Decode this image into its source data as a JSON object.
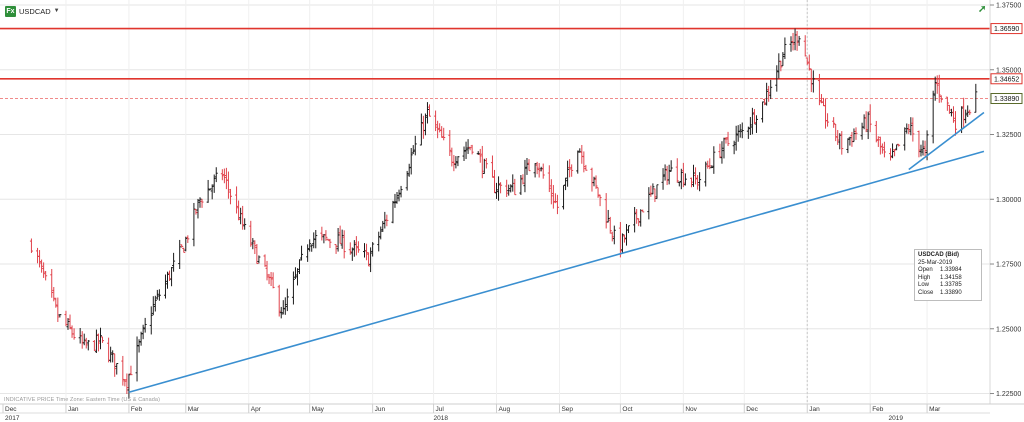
{
  "toolbar": {
    "symbol": "USDCAD",
    "fx_label": "Fx"
  },
  "watermark": {
    "indicative": "INDICATIVE PRICE",
    "timezone": "Time Zone: Eastern Time (US & Canada)"
  },
  "tooltip": {
    "title": "USDCAD (Bid)",
    "date": "25-Mar-2019",
    "open_label": "Open",
    "open": "1.33984",
    "high_label": "High",
    "high": "1.34158",
    "low_label": "Low",
    "low": "1.33785",
    "close_label": "Close",
    "close": "1.33890"
  },
  "colors": {
    "up_bar": "#1a1a1a",
    "down_bar": "#e0424b",
    "trendline": "#3a8fd0",
    "resistance": "#e0352d",
    "grid": "#e6e6e6"
  },
  "chart_data": {
    "type": "ohlc",
    "symbol": "USDCAD",
    "ylim": [
      1.2225,
      1.375
    ],
    "y_ticks": [
      "1.22500",
      "1.25000",
      "1.27500",
      "1.30000",
      "1.32500",
      "1.35000",
      "1.37500"
    ],
    "month_labels": [
      "Dec",
      "Jan",
      "Feb",
      "Mar",
      "Apr",
      "May",
      "Jun",
      "Jul",
      "Aug",
      "Sep",
      "Oct",
      "Nov",
      "Dec",
      "Jan",
      "Feb",
      "Mar"
    ],
    "year_labels": [
      "2017",
      "2018",
      "2019"
    ],
    "horizontal_levels": [
      {
        "label": "1.36590",
        "value": 1.3659,
        "style": "solid"
      },
      {
        "label": "1.34652",
        "value": 1.34652,
        "style": "solid"
      },
      {
        "label": "1.33890",
        "value": 1.3389,
        "style": "dashed"
      }
    ],
    "trendlines": [
      {
        "from": [
          "2018-02-01",
          1.2255
        ],
        "to": [
          "2019-03-29",
          1.3185
        ]
      },
      {
        "from": [
          "2019-02-20",
          1.3115
        ],
        "to": [
          "2019-03-29",
          1.3335
        ]
      }
    ],
    "close_path": [
      [
        "2017-12-15",
        1.283
      ],
      [
        "2017-12-28",
        1.255
      ],
      [
        "2018-01-10",
        1.243
      ],
      [
        "2018-01-18",
        1.245
      ],
      [
        "2018-01-31",
        1.23
      ],
      [
        "2018-02-12",
        1.257
      ],
      [
        "2018-02-28",
        1.282
      ],
      [
        "2018-03-08",
        1.3
      ],
      [
        "2018-03-19",
        1.31
      ],
      [
        "2018-03-30",
        1.288
      ],
      [
        "2018-04-10",
        1.27
      ],
      [
        "2018-04-18",
        1.256
      ],
      [
        "2018-05-01",
        1.285
      ],
      [
        "2018-05-15",
        1.284
      ],
      [
        "2018-05-30",
        1.277
      ],
      [
        "2018-06-12",
        1.3
      ],
      [
        "2018-06-28",
        1.333
      ],
      [
        "2018-07-10",
        1.316
      ],
      [
        "2018-07-20",
        1.321
      ],
      [
        "2018-07-31",
        1.305
      ],
      [
        "2018-08-10",
        1.304
      ],
      [
        "2018-08-20",
        1.316
      ],
      [
        "2018-08-31",
        1.297
      ],
      [
        "2018-09-10",
        1.321
      ],
      [
        "2018-09-20",
        1.302
      ],
      [
        "2018-09-30",
        1.281
      ],
      [
        "2018-10-12",
        1.297
      ],
      [
        "2018-10-25",
        1.311
      ],
      [
        "2018-11-08",
        1.307
      ],
      [
        "2018-11-20",
        1.32
      ],
      [
        "2018-11-30",
        1.326
      ],
      [
        "2018-12-10",
        1.337
      ],
      [
        "2018-12-20",
        1.356
      ],
      [
        "2018-12-28",
        1.364
      ],
      [
        "2019-01-07",
        1.336
      ],
      [
        "2019-01-18",
        1.321
      ],
      [
        "2019-01-31",
        1.33
      ],
      [
        "2019-02-10",
        1.313
      ],
      [
        "2019-02-20",
        1.328
      ],
      [
        "2019-02-28",
        1.317
      ],
      [
        "2019-03-05",
        1.345
      ],
      [
        "2019-03-15",
        1.33
      ],
      [
        "2019-03-25",
        1.3389
      ]
    ]
  }
}
